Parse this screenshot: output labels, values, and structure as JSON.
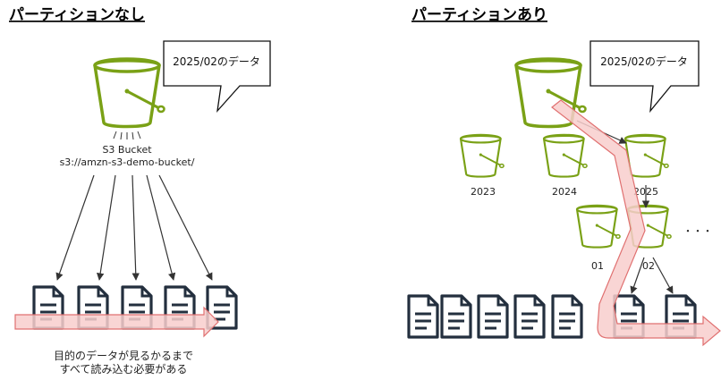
{
  "left": {
    "title": "パーティションなし",
    "callout": "2025/02のデータ",
    "bucket_label_1": "S3 Bucket",
    "bucket_label_2": "s3://amzn-s3-demo-bucket/",
    "note_1": "目的のデータが見るかるまで",
    "note_2": "すべて読み込む必要がある"
  },
  "right": {
    "title": "パーティションあり",
    "callout": "2025/02のデータ",
    "years": [
      "2023",
      "2024",
      "2025"
    ],
    "months": [
      "01",
      "02"
    ],
    "ellipsis": "・・・"
  },
  "colors": {
    "bucket": "#7aa116",
    "document": "#232f3e",
    "arrow": "#333333",
    "highlight_fill": "#f8cecc",
    "highlight_stroke": "#e07070"
  },
  "icons": [
    "s3-bucket-icon",
    "document-icon",
    "callout-bubble"
  ]
}
